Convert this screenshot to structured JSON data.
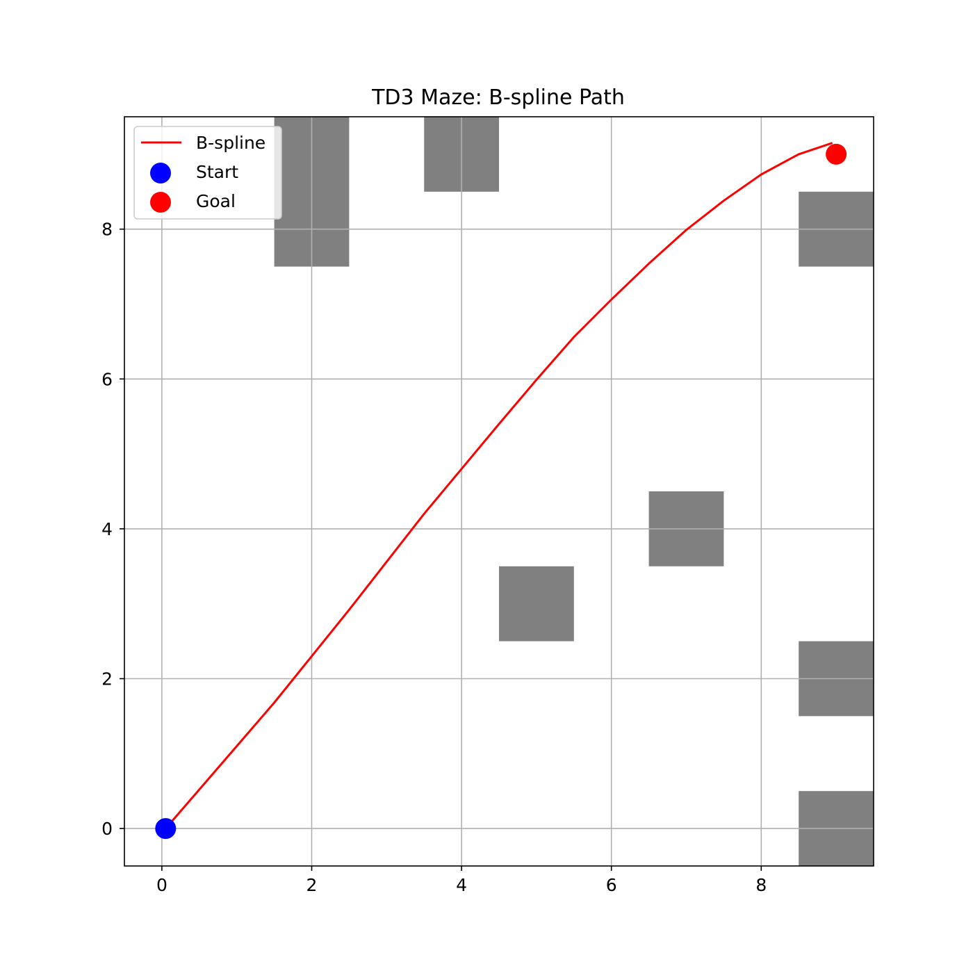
{
  "chart_data": {
    "type": "line",
    "title": "TD3 Maze: B-spline Path",
    "xlabel": "",
    "ylabel": "",
    "xlim": [
      -0.5,
      9.5
    ],
    "ylim": [
      -0.5,
      9.5
    ],
    "xticks": [
      0,
      2,
      4,
      6,
      8
    ],
    "yticks": [
      0,
      2,
      4,
      6,
      8
    ],
    "grid": true,
    "legend_position": "top-left",
    "obstacles": [
      {
        "x": 1.5,
        "y": 7.5,
        "w": 1,
        "h": 2
      },
      {
        "x": 3.5,
        "y": 8.5,
        "w": 1,
        "h": 1
      },
      {
        "x": 8.5,
        "y": 7.5,
        "w": 1,
        "h": 1
      },
      {
        "x": 6.5,
        "y": 3.5,
        "w": 1,
        "h": 1
      },
      {
        "x": 4.5,
        "y": 2.5,
        "w": 1,
        "h": 1
      },
      {
        "x": 8.5,
        "y": 1.5,
        "w": 1,
        "h": 1
      },
      {
        "x": 8.5,
        "y": -0.5,
        "w": 1,
        "h": 1
      }
    ],
    "obstacle_color": "#808080",
    "series": [
      {
        "name": "B-spline",
        "kind": "line",
        "color": "#ff0000",
        "x": [
          0.05,
          0.5,
          1.0,
          1.5,
          2.0,
          2.5,
          3.0,
          3.5,
          4.0,
          4.5,
          5.0,
          5.5,
          6.0,
          6.5,
          7.0,
          7.5,
          8.0,
          8.5,
          8.95
        ],
        "y": [
          0.0,
          0.52,
          1.1,
          1.68,
          2.3,
          2.92,
          3.56,
          4.2,
          4.8,
          5.4,
          5.99,
          6.56,
          7.06,
          7.54,
          7.99,
          8.38,
          8.73,
          9.0,
          9.15
        ]
      },
      {
        "name": "Start",
        "kind": "point",
        "color": "#0000ff",
        "x": [
          0.05
        ],
        "y": [
          0.0
        ]
      },
      {
        "name": "Goal",
        "kind": "point",
        "color": "#ff0000",
        "x": [
          9.0
        ],
        "y": [
          9.0
        ]
      }
    ]
  }
}
